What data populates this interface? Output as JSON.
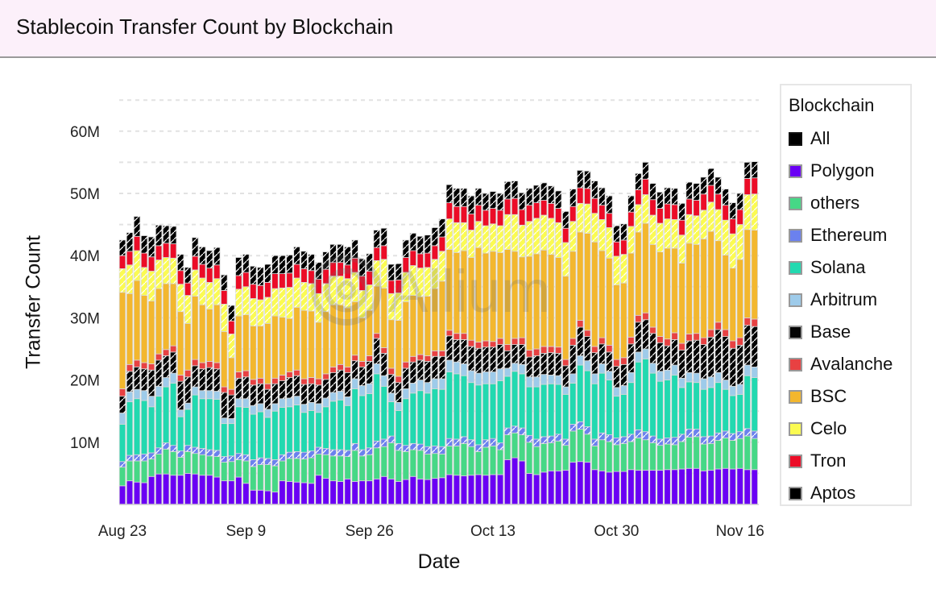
{
  "header": {
    "title": "Stablecoin Transfer Count by Blockchain"
  },
  "watermark": "Allium",
  "chart_data": {
    "type": "bar",
    "stacked": true,
    "title": "Stablecoin Transfer Count by Blockchain",
    "xlabel": "Date",
    "ylabel": "Transfer Count",
    "ylim": [
      0,
      65000000
    ],
    "yticks": [
      10000000,
      20000000,
      30000000,
      40000000,
      50000000,
      60000000
    ],
    "ytick_labels": [
      "10M",
      "20M",
      "30M",
      "40M",
      "50M",
      "60M"
    ],
    "grid": true,
    "xtick_labels": [
      {
        "index": 0,
        "label": "Aug 23"
      },
      {
        "index": 17,
        "label": "Sep 9"
      },
      {
        "index": 34,
        "label": "Sep 26"
      },
      {
        "index": 51,
        "label": "Oct 13"
      },
      {
        "index": 68,
        "label": "Oct 30"
      },
      {
        "index": 85,
        "label": "Nov 16"
      }
    ],
    "start_date": "Aug 23",
    "num_days": 88,
    "units": "millions",
    "legend_title": "Blockchain",
    "legend_position": "right",
    "series": [
      {
        "name": "Polygon",
        "color": "#6a00f4",
        "hatch": false,
        "values": [
          3.0,
          3.8,
          3.6,
          3.5,
          4.5,
          4.9,
          4.9,
          4.7,
          4.7,
          5.0,
          4.9,
          4.7,
          4.7,
          4.4,
          3.8,
          3.8,
          4.4,
          3.4,
          2.3,
          2.3,
          2.2,
          2.0,
          3.8,
          3.7,
          3.6,
          3.5,
          3.4,
          4.7,
          4.2,
          3.8,
          3.7,
          4.1,
          3.7,
          3.8,
          3.8,
          4.1,
          4.5,
          4.1,
          3.7,
          4.0,
          4.5,
          4.1,
          4.0,
          4.2,
          4.3,
          4.8,
          4.7,
          4.6,
          4.7,
          4.8,
          4.7,
          4.8,
          4.8,
          7.2,
          7.5,
          7.0,
          5.0,
          4.8,
          5.2,
          5.4,
          5.4,
          5.5,
          6.8,
          6.9,
          6.8,
          5.6,
          5.4,
          5.2,
          5.3,
          5.3,
          5.6,
          5.5,
          5.5,
          5.5,
          5.5,
          5.6,
          5.6,
          5.7,
          5.8,
          5.8,
          5.4,
          5.5,
          5.7,
          5.8,
          5.7,
          5.8,
          5.6,
          5.6
        ]
      },
      {
        "name": "others",
        "color": "#46d886",
        "hatch": false,
        "values": [
          3.0,
          3.2,
          3.4,
          3.5,
          2.8,
          3.2,
          4.0,
          3.8,
          2.9,
          3.5,
          3.3,
          3.3,
          3.1,
          3.3,
          3.0,
          3.1,
          2.8,
          3.6,
          3.8,
          4.1,
          4.2,
          4.2,
          3.2,
          3.7,
          3.8,
          3.8,
          4.1,
          3.4,
          3.8,
          4.0,
          4.1,
          3.6,
          5.0,
          4.0,
          4.2,
          5.0,
          4.8,
          5.8,
          5.0,
          4.5,
          4.3,
          4.6,
          4.1,
          4.0,
          3.8,
          4.6,
          4.7,
          5.2,
          4.6,
          3.7,
          4.5,
          4.6,
          4.0,
          4.0,
          4.0,
          4.2,
          5.0,
          4.5,
          4.6,
          4.5,
          4.8,
          4.0,
          5.0,
          5.2,
          4.5,
          3.8,
          5.0,
          4.9,
          4.3,
          4.5,
          4.5,
          5.2,
          4.9,
          4.4,
          4.0,
          4.1,
          4.0,
          4.4,
          5.0,
          5.1,
          4.3,
          4.3,
          4.6,
          4.9,
          4.6,
          4.8,
          5.4,
          5.0
        ]
      },
      {
        "name": "Ethereum",
        "color": "#6b81ee",
        "hatch": true,
        "values": [
          0.9,
          0.9,
          1.0,
          1.1,
          1.0,
          1.0,
          1.0,
          1.0,
          1.0,
          1.0,
          1.0,
          1.0,
          1.0,
          1.0,
          0.9,
          0.9,
          1.0,
          1.0,
          1.1,
          1.1,
          1.0,
          1.0,
          1.0,
          1.0,
          1.1,
          1.1,
          1.1,
          1.1,
          1.0,
          1.0,
          1.0,
          1.0,
          1.1,
          1.0,
          1.1,
          1.1,
          1.2,
          1.1,
          1.1,
          1.0,
          1.0,
          1.0,
          1.2,
          1.2,
          1.2,
          1.2,
          1.1,
          1.1,
          1.1,
          1.1,
          1.2,
          1.2,
          1.1,
          1.1,
          1.1,
          1.1,
          1.1,
          1.2,
          1.1,
          1.1,
          1.1,
          1.0,
          1.1,
          1.2,
          1.2,
          1.1,
          1.1,
          1.1,
          1.1,
          1.1,
          1.2,
          1.3,
          1.3,
          1.1,
          1.0,
          1.0,
          1.2,
          1.2,
          1.3,
          1.2,
          1.2,
          1.2,
          1.2,
          1.1,
          1.1,
          1.1,
          1.2,
          1.2
        ]
      },
      {
        "name": "Solana",
        "color": "#22d9b0",
        "hatch": false,
        "values": [
          6.0,
          8.6,
          9.0,
          8.6,
          7.4,
          8.3,
          9.0,
          10.0,
          5.5,
          5.8,
          8.4,
          8.0,
          8.2,
          8.2,
          5.3,
          5.2,
          7.5,
          7.6,
          7.3,
          7.4,
          6.6,
          7.8,
          7.6,
          7.3,
          7.5,
          6.4,
          6.5,
          5.6,
          6.7,
          7.8,
          8.0,
          7.2,
          8.8,
          8.7,
          8.7,
          10.8,
          8.5,
          5.5,
          5.3,
          7.5,
          8.1,
          8.6,
          8.6,
          9.2,
          9.2,
          10.7,
          10.5,
          9.8,
          9.2,
          9.6,
          9.0,
          8.8,
          10.0,
          8.3,
          8.8,
          8.7,
          7.8,
          8.4,
          8.4,
          8.4,
          8.0,
          7.2,
          6.6,
          9.1,
          9.0,
          8.9,
          9.6,
          8.8,
          6.7,
          6.8,
          8.3,
          10.9,
          11.7,
          10.1,
          9.3,
          9.3,
          10.0,
          7.5,
          7.6,
          7.5,
          7.6,
          7.8,
          8.1,
          6.7,
          6.1,
          6.0,
          8.5,
          8.6
        ]
      },
      {
        "name": "Arbitrum",
        "color": "#9ecbea",
        "hatch": false,
        "values": [
          1.8,
          1.6,
          1.5,
          1.6,
          1.7,
          1.6,
          1.5,
          1.6,
          1.1,
          1.0,
          1.3,
          1.3,
          1.3,
          1.3,
          0.9,
          0.8,
          1.3,
          1.4,
          1.4,
          1.3,
          1.3,
          1.2,
          1.4,
          1.4,
          1.4,
          1.3,
          1.3,
          1.4,
          1.4,
          1.4,
          1.4,
          1.4,
          1.6,
          1.6,
          1.6,
          1.6,
          1.7,
          1.4,
          1.3,
          1.6,
          1.6,
          1.7,
          1.7,
          1.6,
          1.7,
          1.9,
          1.9,
          1.9,
          1.9,
          1.9,
          1.9,
          1.9,
          1.9,
          1.3,
          1.3,
          1.5,
          1.6,
          1.6,
          1.6,
          1.4,
          1.4,
          1.2,
          1.5,
          1.5,
          1.6,
          1.6,
          1.5,
          1.4,
          1.4,
          1.4,
          1.6,
          1.6,
          1.6,
          1.6,
          1.6,
          1.6,
          1.6,
          1.5,
          1.5,
          1.5,
          1.7,
          1.7,
          1.6,
          1.5,
          1.5,
          1.6,
          1.7,
          1.7
        ]
      },
      {
        "name": "Base",
        "color": "#050505",
        "hatch": true,
        "values": [
          2.7,
          3.3,
          3.6,
          3.5,
          4.2,
          4.2,
          3.5,
          3.4,
          4.6,
          4.2,
          3.4,
          3.5,
          3.7,
          3.6,
          4.1,
          3.8,
          3.3,
          3.5,
          3.3,
          3.2,
          3.2,
          3.2,
          2.9,
          3.3,
          3.3,
          3.2,
          3.0,
          3.0,
          3.0,
          3.2,
          3.4,
          3.9,
          2.9,
          3.0,
          3.6,
          4.1,
          3.6,
          3.0,
          3.2,
          3.3,
          3.4,
          3.2,
          3.4,
          3.6,
          3.6,
          3.9,
          3.6,
          3.9,
          3.9,
          4.0,
          4.0,
          4.0,
          3.9,
          2.8,
          3.0,
          3.2,
          3.2,
          3.4,
          3.4,
          3.6,
          3.6,
          3.4,
          4.6,
          4.6,
          3.9,
          3.4,
          3.2,
          3.1,
          3.4,
          3.4,
          4.6,
          4.8,
          4.7,
          4.8,
          4.6,
          3.9,
          4.1,
          4.5,
          5.1,
          5.3,
          5.5,
          6.4,
          6.9,
          7.0,
          6.1,
          6.3,
          6.4,
          6.5
        ]
      },
      {
        "name": "Avalanche",
        "color": "#e84142",
        "hatch": false,
        "values": [
          1.2,
          1.1,
          1.1,
          1.0,
          1.0,
          1.0,
          1.0,
          1.0,
          1.0,
          1.1,
          1.0,
          1.0,
          1.0,
          1.0,
          0.9,
          0.9,
          1.0,
          1.0,
          0.9,
          0.9,
          0.9,
          0.9,
          0.9,
          0.9,
          0.9,
          0.9,
          1.0,
          1.0,
          0.9,
          0.9,
          0.9,
          0.9,
          0.9,
          0.9,
          0.9,
          0.8,
          0.9,
          1.0,
          1.0,
          1.0,
          0.9,
          0.9,
          0.9,
          0.9,
          0.9,
          0.9,
          1.0,
          1.0,
          1.0,
          1.0,
          1.0,
          0.9,
          1.0,
          1.0,
          1.0,
          1.1,
          1.1,
          1.1,
          1.1,
          1.0,
          1.0,
          1.0,
          1.1,
          1.1,
          1.0,
          1.0,
          1.0,
          1.1,
          1.1,
          1.1,
          1.1,
          1.1,
          1.1,
          1.0,
          1.0,
          1.1,
          1.1,
          1.1,
          1.1,
          1.1,
          1.1,
          1.2,
          1.2,
          1.1,
          1.2,
          1.2,
          1.2,
          1.2
        ]
      },
      {
        "name": "BSC",
        "color": "#f3b72e",
        "hatch": false,
        "values": [
          15.5,
          11.4,
          12.8,
          10.8,
          10.1,
          10.5,
          10.6,
          10.0,
          10.2,
          7.5,
          10.2,
          9.3,
          8.4,
          9.3,
          8.9,
          5.1,
          9.0,
          9.0,
          8.6,
          8.4,
          9.7,
          10.0,
          9.3,
          8.6,
          10.1,
          11.0,
          10.7,
          9.1,
          10.0,
          10.0,
          9.6,
          9.5,
          8.6,
          7.0,
          7.3,
          7.6,
          9.6,
          7.8,
          9.0,
          9.7,
          9.8,
          9.3,
          9.6,
          10.0,
          11.2,
          13.0,
          13.0,
          13.3,
          13.3,
          15.2,
          14.1,
          14.5,
          13.8,
          15.3,
          14.0,
          13.0,
          15.1,
          15.3,
          15.5,
          14.8,
          14.4,
          13.4,
          14.0,
          14.2,
          15.6,
          16.8,
          14.0,
          14.0,
          12.0,
          12.0,
          13.5,
          13.4,
          14.4,
          13.3,
          13.6,
          14.6,
          13.6,
          12.9,
          14.6,
          14.3,
          15.9,
          15.8,
          13.1,
          12.0,
          11.7,
          12.6,
          14.2,
          14.3
        ]
      },
      {
        "name": "Celo",
        "color": "#fbfb52",
        "hatch": true,
        "values": [
          3.8,
          4.6,
          4.8,
          4.5,
          4.8,
          4.6,
          4.2,
          4.1,
          4.4,
          4.5,
          4.2,
          4.3,
          4.3,
          4.2,
          4.4,
          3.8,
          4.3,
          4.5,
          4.4,
          4.2,
          4.2,
          4.4,
          4.7,
          5.0,
          4.7,
          4.5,
          4.4,
          4.6,
          4.5,
          4.6,
          4.6,
          4.7,
          4.7,
          4.4,
          4.1,
          4.1,
          4.6,
          4.2,
          4.4,
          4.7,
          4.8,
          4.6,
          4.6,
          4.7,
          4.8,
          4.9,
          4.8,
          4.5,
          4.4,
          4.2,
          4.4,
          4.4,
          4.3,
          5.6,
          5.9,
          5.1,
          5.6,
          5.7,
          5.6,
          5.8,
          5.6,
          5.4,
          4.8,
          4.6,
          4.7,
          4.6,
          5.0,
          4.9,
          4.6,
          4.6,
          4.3,
          4.4,
          4.6,
          4.7,
          4.6,
          4.7,
          4.6,
          4.5,
          4.6,
          4.6,
          4.6,
          4.7,
          5.0,
          5.6,
          5.5,
          5.6,
          5.6,
          5.8
        ]
      },
      {
        "name": "Tron",
        "color": "#ec0c27",
        "hatch": false,
        "values": [
          2.1,
          2.2,
          2.3,
          2.3,
          2.3,
          2.3,
          2.3,
          2.3,
          2.2,
          2.0,
          2.2,
          2.2,
          2.3,
          2.2,
          2.2,
          2.1,
          2.2,
          2.3,
          2.3,
          2.3,
          2.4,
          2.4,
          2.3,
          2.3,
          2.2,
          2.2,
          2.1,
          2.3,
          2.3,
          2.2,
          2.2,
          2.2,
          2.3,
          2.3,
          2.2,
          2.1,
          2.2,
          2.1,
          2.1,
          2.4,
          2.4,
          2.3,
          2.3,
          2.2,
          2.3,
          2.6,
          2.6,
          2.6,
          2.6,
          2.6,
          2.5,
          2.5,
          2.5,
          2.5,
          2.6,
          2.5,
          2.6,
          2.5,
          2.4,
          2.4,
          2.3,
          2.3,
          2.4,
          2.5,
          2.5,
          2.4,
          2.3,
          2.3,
          2.3,
          2.3,
          2.3,
          2.4,
          2.5,
          2.5,
          2.4,
          2.4,
          2.4,
          2.4,
          2.5,
          2.5,
          2.6,
          2.7,
          2.5,
          2.4,
          2.4,
          2.4,
          2.6,
          2.6
        ]
      },
      {
        "name": "Aptos",
        "color": "#000000",
        "hatch": true,
        "values": [
          2.5,
          3.0,
          3.2,
          2.8,
          3.2,
          3.3,
          2.8,
          2.8,
          2.6,
          2.5,
          3.0,
          2.8,
          2.8,
          2.8,
          2.5,
          2.5,
          2.9,
          2.9,
          2.9,
          2.9,
          2.9,
          2.9,
          2.9,
          2.9,
          2.8,
          2.8,
          2.6,
          2.7,
          2.8,
          2.9,
          2.9,
          2.9,
          2.9,
          2.8,
          2.8,
          2.8,
          2.8,
          2.6,
          2.6,
          2.8,
          2.8,
          2.8,
          2.9,
          2.9,
          2.9,
          2.9,
          2.9,
          2.9,
          2.9,
          2.7,
          2.7,
          2.7,
          2.7,
          2.8,
          2.8,
          2.7,
          2.7,
          2.8,
          2.8,
          2.8,
          2.8,
          2.7,
          2.8,
          2.8,
          2.8,
          2.8,
          2.8,
          2.8,
          2.6,
          2.6,
          2.6,
          2.6,
          2.7,
          2.6,
          2.6,
          2.6,
          2.6,
          2.7,
          2.7,
          2.7,
          2.7,
          2.7,
          2.7,
          2.6,
          2.6,
          2.6,
          2.6,
          2.6
        ]
      }
    ]
  },
  "legend": {
    "title": "Blockchain",
    "items": [
      {
        "label": "All",
        "color": "#000000"
      },
      {
        "label": "Polygon",
        "color": "#6a00f4"
      },
      {
        "label": "others",
        "color": "#46d886"
      },
      {
        "label": "Ethereum",
        "color": "#6b81ee"
      },
      {
        "label": "Solana",
        "color": "#22d9b0"
      },
      {
        "label": "Arbitrum",
        "color": "#9ecbea"
      },
      {
        "label": "Base",
        "color": "#050505"
      },
      {
        "label": "Avalanche",
        "color": "#e84142"
      },
      {
        "label": "BSC",
        "color": "#f3b72e"
      },
      {
        "label": "Celo",
        "color": "#fbfb52"
      },
      {
        "label": "Tron",
        "color": "#ec0c27"
      },
      {
        "label": "Aptos",
        "color": "#000000"
      }
    ]
  }
}
